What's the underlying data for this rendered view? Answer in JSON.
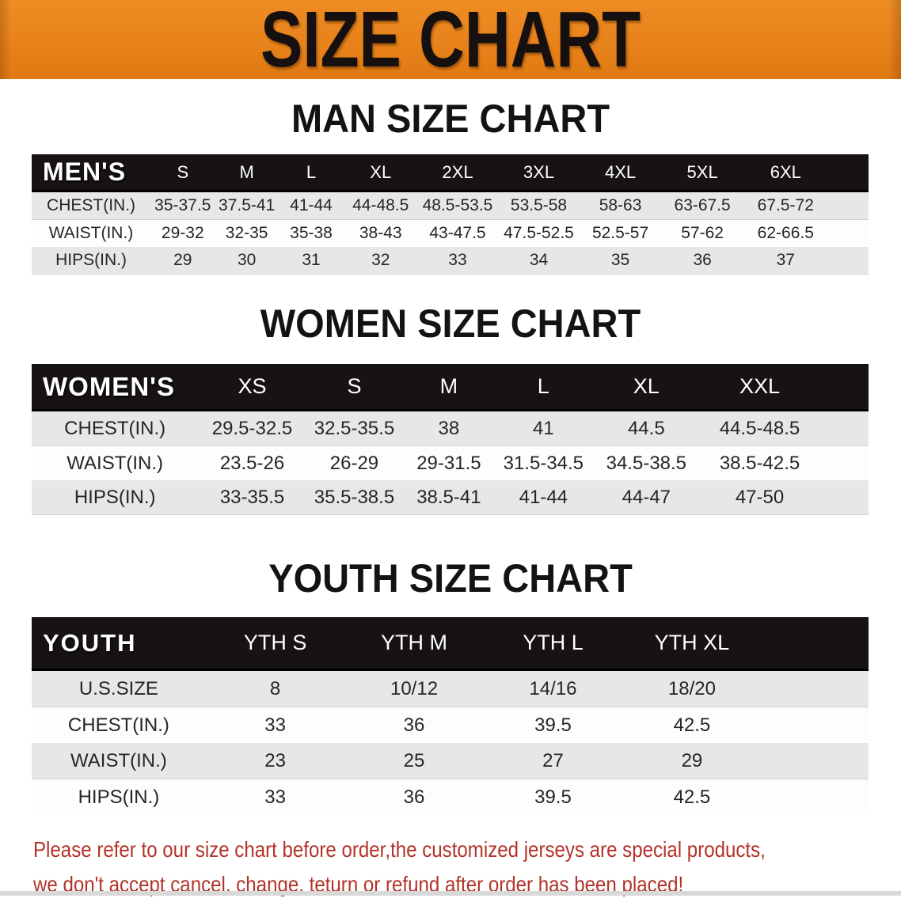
{
  "banner": {
    "title": "SIZE CHART"
  },
  "colors": {
    "banner_bg": "#E8821B",
    "header_bar": "#181313",
    "row_gray": "#E7E7E7",
    "row_white": "#FDFDFD",
    "disclaimer_red": "#B2332A"
  },
  "sections": [
    {
      "heading": "MAN SIZE CHART",
      "label": "MEN'S",
      "sizes": [
        "S",
        "M",
        "L",
        "XL",
        "2XL",
        "3XL",
        "4XL",
        "5XL",
        "6XL"
      ],
      "rows": [
        {
          "label": "CHEST(IN.)",
          "values": [
            "35-37.5",
            "37.5-41",
            "41-44",
            "44-48.5",
            "48.5-53.5",
            "53.5-58",
            "58-63",
            "63-67.5",
            "67.5-72"
          ]
        },
        {
          "label": "WAIST(IN.)",
          "values": [
            "29-32",
            "32-35",
            "35-38",
            "38-43",
            "43-47.5",
            "47.5-52.5",
            "52.5-57",
            "57-62",
            "62-66.5"
          ]
        },
        {
          "label": "HIPS(IN.)",
          "values": [
            "29",
            "30",
            "31",
            "32",
            "33",
            "34",
            "35",
            "36",
            "37"
          ]
        }
      ]
    },
    {
      "heading": "WOMEN SIZE CHART",
      "label": "WOMEN'S",
      "sizes": [
        "XS",
        "S",
        "M",
        "L",
        "XL",
        "XXL"
      ],
      "rows": [
        {
          "label": "CHEST(IN.)",
          "values": [
            "29.5-32.5",
            "32.5-35.5",
            "38",
            "41",
            "44.5",
            "44.5-48.5"
          ]
        },
        {
          "label": "WAIST(IN.)",
          "values": [
            "23.5-26",
            "26-29",
            "29-31.5",
            "31.5-34.5",
            "34.5-38.5",
            "38.5-42.5"
          ]
        },
        {
          "label": "HIPS(IN.)",
          "values": [
            "33-35.5",
            "35.5-38.5",
            "38.5-41",
            "41-44",
            "44-47",
            "47-50"
          ]
        }
      ]
    },
    {
      "heading": "YOUTH SIZE CHART",
      "label": "YOUTH",
      "sizes": [
        "YTH S",
        "YTH M",
        "YTH L",
        "YTH XL"
      ],
      "rows": [
        {
          "label": "U.S.SIZE",
          "values": [
            "8",
            "10/12",
            "14/16",
            "18/20"
          ]
        },
        {
          "label": "CHEST(IN.)",
          "values": [
            "33",
            "36",
            "39.5",
            "42.5"
          ]
        },
        {
          "label": "WAIST(IN.)",
          "values": [
            "23",
            "25",
            "27",
            "29"
          ]
        },
        {
          "label": "HIPS(IN.)",
          "values": [
            "33",
            "36",
            "39.5",
            "42.5"
          ]
        }
      ]
    }
  ],
  "disclaimer": {
    "line1": "Please refer to our size chart before order,the customized jerseys are special products,",
    "line2": "we don't accept cancel, change, teturn or refund after order has been placed!"
  }
}
